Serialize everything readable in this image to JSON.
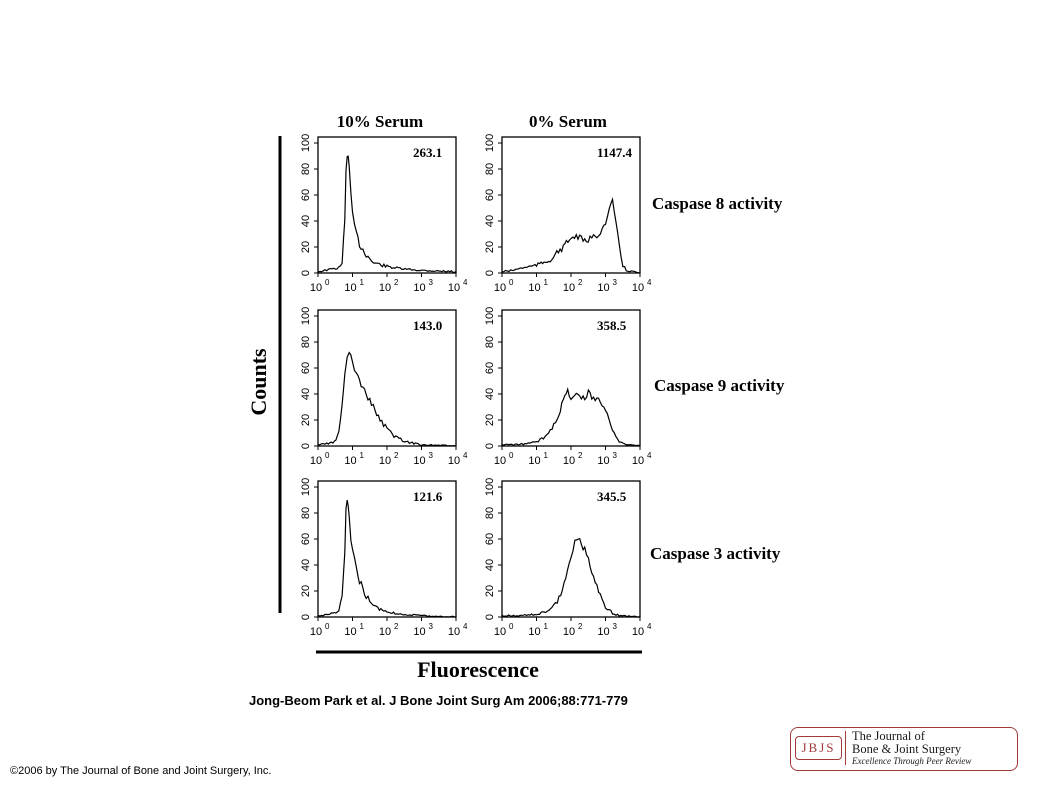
{
  "chart_data": {
    "type": "line",
    "grid": "off",
    "column_titles": [
      "10% Serum",
      "0% Serum"
    ],
    "row_titles": [
      "Caspase 8 activity",
      "Caspase 9 activity",
      "Caspase 3 activity"
    ],
    "ylabel": "Counts",
    "xlabel": "Fluorescence",
    "x_scale": "log",
    "xlim": [
      1,
      10000
    ],
    "ylim": [
      0,
      100
    ],
    "y_ticks": [
      "0",
      "20",
      "40",
      "60",
      "80",
      "100"
    ],
    "x_ticks": [
      "10",
      "10",
      "10",
      "10",
      "10"
    ],
    "x_tick_exponents": [
      "0",
      "1",
      "2",
      "3",
      "4"
    ],
    "panels": [
      {
        "name": "10% Serum / Caspase 8",
        "value_label": "263.1",
        "row": 0,
        "col": 0,
        "x": [
          1,
          1.6,
          2.5,
          4,
          5,
          6,
          6.5,
          7,
          7.5,
          8,
          9,
          10,
          13,
          16,
          25,
          40,
          100,
          300,
          1000,
          10000
        ],
        "y": [
          1,
          2,
          3,
          4,
          8,
          40,
          78,
          90,
          92,
          80,
          60,
          45,
          30,
          22,
          14,
          8,
          5,
          3,
          2,
          1
        ]
      },
      {
        "name": "0% Serum / Caspase 8",
        "value_label": "1147.4",
        "row": 0,
        "col": 1,
        "x": [
          1,
          2,
          4,
          10,
          25,
          60,
          100,
          160,
          250,
          400,
          630,
          800,
          1000,
          1300,
          1600,
          2000,
          2500,
          3200,
          4000,
          6300,
          10000
        ],
        "y": [
          1,
          2,
          4,
          6,
          10,
          20,
          27,
          28,
          24,
          27,
          30,
          34,
          38,
          48,
          55,
          40,
          20,
          6,
          2,
          1,
          0
        ]
      },
      {
        "name": "10% Serum / Caspase 9",
        "value_label": "143.0",
        "row": 1,
        "col": 0,
        "x": [
          1,
          2,
          3,
          4,
          5,
          6,
          7,
          8,
          10,
          13,
          16,
          25,
          40,
          63,
          100,
          160,
          250,
          400,
          1000,
          10000
        ],
        "y": [
          1,
          2,
          3,
          10,
          30,
          55,
          68,
          73,
          65,
          55,
          50,
          40,
          30,
          20,
          13,
          8,
          5,
          3,
          1,
          0
        ]
      },
      {
        "name": "0% Serum / Caspase 9",
        "value_label": "358.5",
        "row": 1,
        "col": 1,
        "x": [
          1,
          3,
          10,
          20,
          40,
          60,
          80,
          100,
          160,
          250,
          320,
          400,
          630,
          1000,
          1600,
          2500,
          4000,
          10000
        ],
        "y": [
          1,
          1,
          3,
          8,
          22,
          35,
          42,
          38,
          40,
          35,
          43,
          38,
          36,
          28,
          12,
          4,
          1,
          0
        ]
      },
      {
        "name": "10% Serum / Caspase 3",
        "value_label": "121.6",
        "row": 2,
        "col": 0,
        "x": [
          1,
          2,
          3,
          4,
          5,
          6,
          6.5,
          7,
          7.5,
          8,
          9,
          10,
          13,
          16,
          25,
          40,
          100,
          300,
          1000,
          10000
        ],
        "y": [
          1,
          2,
          3,
          5,
          15,
          50,
          82,
          90,
          85,
          75,
          60,
          50,
          38,
          28,
          16,
          8,
          4,
          2,
          1,
          0
        ]
      },
      {
        "name": "0% Serum / Caspase 3",
        "value_label": "345.5",
        "row": 2,
        "col": 1,
        "x": [
          1,
          3,
          10,
          25,
          40,
          63,
          100,
          130,
          160,
          200,
          250,
          320,
          400,
          630,
          1000,
          1600,
          2500,
          10000
        ],
        "y": [
          1,
          1,
          2,
          5,
          12,
          25,
          45,
          60,
          62,
          56,
          52,
          45,
          35,
          20,
          8,
          3,
          1,
          0
        ]
      }
    ]
  },
  "citation": "Jong-Beom Park et al. J Bone Joint Surg Am 2006;88:771-779",
  "copyright": "©2006 by The Journal of Bone and Joint Surgery, Inc.",
  "logo": {
    "abbrev": "JBJS",
    "line1": "The Journal of",
    "line2": "Bone & Joint Surgery",
    "tagline": "Excellence Through Peer Review",
    "color": "#a33a3a"
  }
}
